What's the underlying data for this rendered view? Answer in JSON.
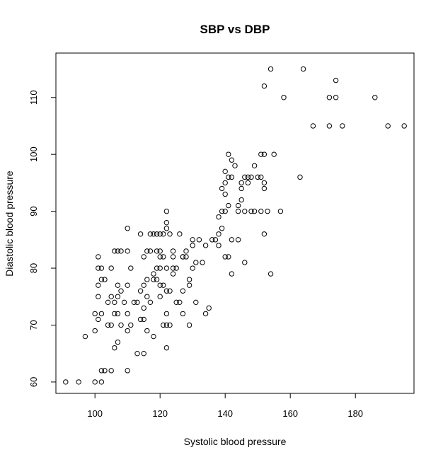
{
  "chart_data": {
    "type": "scatter",
    "title": "SBP vs DBP",
    "xlabel": "Systolic blood pressure",
    "ylabel": "Diastolic blood pressure",
    "xlim": [
      88,
      198
    ],
    "ylim": [
      58,
      117.8
    ],
    "xticks": [
      100,
      120,
      140,
      160,
      180
    ],
    "yticks": [
      60,
      70,
      80,
      90,
      100,
      110
    ],
    "grid": false,
    "marker": "open-circle",
    "points": [
      [
        91,
        60
      ],
      [
        95,
        60
      ],
      [
        97,
        68
      ],
      [
        100,
        60
      ],
      [
        102,
        60
      ],
      [
        103,
        62
      ],
      [
        102,
        62
      ],
      [
        105,
        62
      ],
      [
        110,
        62
      ],
      [
        104,
        70
      ],
      [
        105,
        70
      ],
      [
        108,
        70
      ],
      [
        106,
        66
      ],
      [
        107,
        67
      ],
      [
        110,
        69
      ],
      [
        111,
        70
      ],
      [
        113,
        65
      ],
      [
        115,
        65
      ],
      [
        116,
        69
      ],
      [
        118,
        68
      ],
      [
        121,
        70
      ],
      [
        122,
        66
      ],
      [
        122,
        70
      ],
      [
        123,
        70
      ],
      [
        127,
        72
      ],
      [
        129,
        70
      ],
      [
        134,
        72
      ],
      [
        135,
        73
      ],
      [
        100,
        69
      ],
      [
        100,
        72
      ],
      [
        101,
        71
      ],
      [
        101,
        75
      ],
      [
        101,
        77
      ],
      [
        102,
        72
      ],
      [
        102,
        78
      ],
      [
        102,
        80
      ],
      [
        101,
        80
      ],
      [
        103,
        78
      ],
      [
        104,
        74
      ],
      [
        105,
        75
      ],
      [
        105,
        80
      ],
      [
        106,
        72
      ],
      [
        106,
        74
      ],
      [
        107,
        72
      ],
      [
        107,
        75
      ],
      [
        107,
        77
      ],
      [
        108,
        76
      ],
      [
        109,
        74
      ],
      [
        110,
        72
      ],
      [
        110,
        77
      ],
      [
        111,
        80
      ],
      [
        112,
        74
      ],
      [
        113,
        74
      ],
      [
        114,
        76
      ],
      [
        114,
        71
      ],
      [
        115,
        71
      ],
      [
        115,
        73
      ],
      [
        115,
        77
      ],
      [
        116,
        75
      ],
      [
        116,
        78
      ],
      [
        117,
        74
      ],
      [
        118,
        78
      ],
      [
        118,
        79
      ],
      [
        119,
        78
      ],
      [
        119,
        80
      ],
      [
        119,
        83
      ],
      [
        120,
        75
      ],
      [
        120,
        77
      ],
      [
        120,
        80
      ],
      [
        120,
        82
      ],
      [
        121,
        77
      ],
      [
        121,
        82
      ],
      [
        122,
        72
      ],
      [
        122,
        76
      ],
      [
        122,
        80
      ],
      [
        123,
        76
      ],
      [
        124,
        79
      ],
      [
        124,
        80
      ],
      [
        124,
        82
      ],
      [
        124,
        83
      ],
      [
        125,
        80
      ],
      [
        125,
        74
      ],
      [
        126,
        74
      ],
      [
        127,
        76
      ],
      [
        127,
        82
      ],
      [
        128,
        82
      ],
      [
        128,
        83
      ],
      [
        129,
        78
      ],
      [
        129,
        77
      ],
      [
        130,
        80
      ],
      [
        130,
        84
      ],
      [
        130,
        85
      ],
      [
        131,
        81
      ],
      [
        131,
        74
      ],
      [
        132,
        85
      ],
      [
        133,
        81
      ],
      [
        134,
        84
      ],
      [
        136,
        85
      ],
      [
        137,
        85
      ],
      [
        138,
        84
      ],
      [
        138,
        86
      ],
      [
        139,
        87
      ],
      [
        140,
        82
      ],
      [
        141,
        82
      ],
      [
        142,
        79
      ],
      [
        146,
        81
      ],
      [
        152,
        86
      ],
      [
        154,
        79
      ],
      [
        101,
        82
      ],
      [
        106,
        83
      ],
      [
        107,
        83
      ],
      [
        108,
        83
      ],
      [
        110,
        83
      ],
      [
        110,
        87
      ],
      [
        114,
        86
      ],
      [
        115,
        82
      ],
      [
        116,
        83
      ],
      [
        117,
        83
      ],
      [
        117,
        86
      ],
      [
        118,
        86
      ],
      [
        119,
        86
      ],
      [
        120,
        86
      ],
      [
        120,
        83
      ],
      [
        121,
        86
      ],
      [
        122,
        88
      ],
      [
        122,
        87
      ],
      [
        122,
        90
      ],
      [
        123,
        86
      ],
      [
        126,
        86
      ],
      [
        127,
        82
      ],
      [
        138,
        89
      ],
      [
        139,
        90
      ],
      [
        139,
        94
      ],
      [
        140,
        90
      ],
      [
        140,
        93
      ],
      [
        140,
        95
      ],
      [
        140,
        97
      ],
      [
        141,
        91
      ],
      [
        141,
        96
      ],
      [
        141,
        100
      ],
      [
        142,
        99
      ],
      [
        142,
        96
      ],
      [
        142,
        85
      ],
      [
        143,
        98
      ],
      [
        144,
        91
      ],
      [
        144,
        90
      ],
      [
        144,
        85
      ],
      [
        145,
        94
      ],
      [
        145,
        95
      ],
      [
        145,
        92
      ],
      [
        146,
        96
      ],
      [
        146,
        90
      ],
      [
        147,
        95
      ],
      [
        147,
        96
      ],
      [
        148,
        90
      ],
      [
        148,
        96
      ],
      [
        149,
        90
      ],
      [
        149,
        98
      ],
      [
        150,
        96
      ],
      [
        151,
        100
      ],
      [
        151,
        96
      ],
      [
        151,
        90
      ],
      [
        152,
        100
      ],
      [
        152,
        95
      ],
      [
        152,
        94
      ],
      [
        153,
        90
      ],
      [
        155,
        100
      ],
      [
        157,
        90
      ],
      [
        163,
        96
      ],
      [
        152,
        112
      ],
      [
        154,
        115
      ],
      [
        158,
        110
      ],
      [
        164,
        115
      ],
      [
        167,
        105
      ],
      [
        172,
        105
      ],
      [
        172,
        110
      ],
      [
        174,
        110
      ],
      [
        174,
        113
      ],
      [
        176,
        105
      ],
      [
        186,
        110
      ],
      [
        190,
        105
      ],
      [
        195,
        105
      ]
    ]
  }
}
